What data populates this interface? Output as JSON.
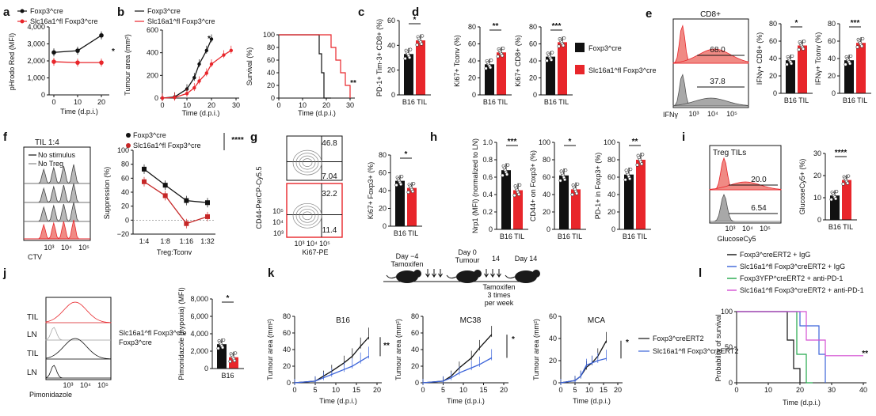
{
  "colors": {
    "ctrl": "#111111",
    "ko": "#e8262b",
    "ko_fill": "#f08a84",
    "blue": "#3b63d9",
    "green": "#22a84a",
    "magenta": "#d44fd2",
    "grey": "#8c8c8c"
  },
  "panel_labels": [
    "a",
    "b",
    "c",
    "d",
    "e",
    "f",
    "g",
    "h",
    "i",
    "j",
    "k",
    "l"
  ],
  "chart_data": [
    {
      "id": "a",
      "type": "line",
      "legend": [
        "Foxp3^cre",
        "Slc16a1^fl Foxp3^cre"
      ],
      "x": [
        0,
        10,
        20
      ],
      "xticks": [
        "0",
        "10",
        "20"
      ],
      "xlabel": "Time (d.p.i.)",
      "ylabel": "pHrodo Red (MFI)",
      "ylim": [
        0,
        4000
      ],
      "yticks": [
        "0",
        "1,000",
        "2,000",
        "3,000",
        "4,000"
      ],
      "series": [
        {
          "name": "Foxp3^cre",
          "values": [
            2500,
            2600,
            3500
          ]
        },
        {
          "name": "Slc16a1^fl Foxp3^cre",
          "values": [
            1950,
            1900,
            1900
          ]
        }
      ],
      "sig": "*"
    },
    {
      "id": "b1",
      "type": "line",
      "legend": [
        "Foxp3^cre",
        "Slc16a1^fl Foxp3^cre"
      ],
      "x": [
        0,
        5,
        10,
        13,
        15,
        18,
        20,
        25,
        28
      ],
      "xticks": [
        "0",
        "10",
        "20",
        "30"
      ],
      "xlabel": "Time (d.p.i.)",
      "ylabel": "Tumour area (mm²)",
      "ylim": [
        0,
        600
      ],
      "yticks": [
        "0",
        "200",
        "400",
        "600"
      ],
      "series": [
        {
          "name": "Foxp3^cre",
          "values": [
            0,
            10,
            80,
            180,
            300,
            420,
            520,
            null,
            null
          ]
        },
        {
          "name": "Slc16a1^fl Foxp3^cre",
          "values": [
            0,
            5,
            40,
            90,
            150,
            220,
            300,
            380,
            420
          ]
        }
      ],
      "sig": "*"
    },
    {
      "id": "b2",
      "type": "line",
      "subtype": "survival",
      "xlabel": "Time (d.p.i.)",
      "ylabel": "Survival (%)",
      "ylim": [
        0,
        100
      ],
      "yticks": [
        "0",
        "20",
        "40",
        "60",
        "80",
        "100"
      ],
      "xticks": [
        "0",
        "10",
        "20",
        "30"
      ],
      "series": [
        {
          "name": "Foxp3^cre",
          "x": [
            0,
            15,
            17,
            18,
            19,
            22
          ],
          "values": [
            100,
            100,
            70,
            40,
            0,
            0
          ]
        },
        {
          "name": "Slc16a1^fl Foxp3^cre",
          "x": [
            0,
            20,
            22,
            24,
            26,
            28,
            30
          ],
          "values": [
            100,
            100,
            80,
            60,
            40,
            20,
            0
          ]
        }
      ],
      "sig": "**"
    },
    {
      "id": "c",
      "type": "bar",
      "categories": [
        "B16 TIL"
      ],
      "ylabel": "PD-1+ Tim-3+ CD8+ (%)",
      "ylim": [
        0,
        60
      ],
      "yticks": [
        "0",
        "20",
        "40",
        "60"
      ],
      "series": [
        {
          "name": "Foxp3^cre",
          "values": [
            33
          ]
        },
        {
          "name": "Slc16a1^fl Foxp3^cre",
          "values": [
            44
          ]
        }
      ],
      "sig": "*"
    },
    {
      "id": "d1",
      "type": "bar",
      "categories": [
        "B16 TIL"
      ],
      "ylabel": "Ki67+ Tconv (%)",
      "ylim": [
        0,
        80
      ],
      "yticks": [
        "0",
        "20",
        "40",
        "60",
        "80"
      ],
      "series": [
        {
          "name": "Foxp3^cre",
          "values": [
            36
          ]
        },
        {
          "name": "Slc16a1^fl Foxp3^cre",
          "values": [
            50
          ]
        }
      ],
      "sig": "**"
    },
    {
      "id": "d2",
      "type": "bar",
      "categories": [
        "B16 TIL"
      ],
      "ylabel": "Ki67+ CD8+ (%)",
      "ylim": [
        0,
        80
      ],
      "yticks": [
        "0",
        "20",
        "40",
        "60",
        "80"
      ],
      "series": [
        {
          "name": "Foxp3^cre",
          "values": [
            45
          ]
        },
        {
          "name": "Slc16a1^fl Foxp3^cre",
          "values": [
            62
          ]
        }
      ],
      "sig": "***",
      "legend": [
        "Foxp3^cre",
        "Slc16a1^fl Foxp3^cre"
      ]
    },
    {
      "id": "e1",
      "type": "area",
      "subtype": "histogram",
      "title": "CD8+",
      "xlabel": "IFNγ",
      "xticks": [
        "10³",
        "10⁴",
        "10⁵"
      ],
      "gates": [
        "68.0",
        "37.8"
      ]
    },
    {
      "id": "e2",
      "type": "bar",
      "categories": [
        "B16 TIL"
      ],
      "ylabel": "IFNγ+ CD8+ (%)",
      "ylim": [
        0,
        80
      ],
      "yticks": [
        "0",
        "20",
        "40",
        "60",
        "80"
      ],
      "series": [
        {
          "name": "Foxp3^cre",
          "values": [
            38
          ]
        },
        {
          "name": "Slc16a1^fl Foxp3^cre",
          "values": [
            55
          ]
        }
      ],
      "sig": "*"
    },
    {
      "id": "e3",
      "type": "bar",
      "categories": [
        "B16 TIL"
      ],
      "ylabel": "IFNγ+ Tconv (%)",
      "ylim": [
        0,
        80
      ],
      "yticks": [
        "0",
        "20",
        "40",
        "60",
        "80"
      ],
      "series": [
        {
          "name": "Foxp3^cre",
          "values": [
            38
          ]
        },
        {
          "name": "Slc16a1^fl Foxp3^cre",
          "values": [
            58
          ]
        }
      ],
      "sig": "***"
    },
    {
      "id": "f1",
      "type": "area",
      "subtype": "histogram",
      "title": "TIL 1:4",
      "legend": [
        "No stimulus",
        "No Treg"
      ],
      "xlabel": "CTV",
      "xticks": [
        "10³",
        "10⁴",
        "10⁵"
      ]
    },
    {
      "id": "f2",
      "type": "line",
      "legend": [
        "Foxp3^cre",
        "Slc16a1^fl Foxp3^cre"
      ],
      "categories": [
        "1:4",
        "1:8",
        "1:16",
        "1:32"
      ],
      "xlabel": "Treg:Tconv",
      "ylabel": "Suppression (%)",
      "ylim": [
        -20,
        100
      ],
      "yticks": [
        "−20",
        "0",
        "20",
        "40",
        "60",
        "80",
        "100"
      ],
      "series": [
        {
          "name": "Foxp3^cre",
          "values": [
            73,
            50,
            28,
            25
          ]
        },
        {
          "name": "Slc16a1^fl Foxp3^cre",
          "values": [
            55,
            35,
            -5,
            5
          ]
        }
      ],
      "sig": "****"
    },
    {
      "id": "g1",
      "type": "scatter",
      "subtype": "flow-contour",
      "xlabel": "Ki67-PE",
      "ylabel": "CD44-PerCP-Cy5.5",
      "xticks": [
        "10³",
        "10⁴",
        "10⁵"
      ],
      "yticks": [
        "10³",
        "10⁴",
        "10⁵"
      ],
      "gates": [
        "46.8",
        "7.04",
        "32.2",
        "11.4"
      ]
    },
    {
      "id": "g2",
      "type": "bar",
      "categories": [
        "B16 TIL"
      ],
      "ylabel": "Ki67+ Foxp3+ (%)",
      "ylim": [
        0,
        80
      ],
      "yticks": [
        "0",
        "20",
        "40",
        "60",
        "80"
      ],
      "series": [
        {
          "name": "Foxp3^cre",
          "values": [
            51
          ]
        },
        {
          "name": "Slc16a1^fl Foxp3^cre",
          "values": [
            43
          ]
        }
      ],
      "sig": "*"
    },
    {
      "id": "h1",
      "type": "bar",
      "categories": [
        "B16 TIL"
      ],
      "ylabel": "Nrp1 (MFI) (normalized to LN)",
      "ylim": [
        0,
        1.0
      ],
      "yticks": [
        "0",
        "0.2",
        "0.4",
        "0.6",
        "0.8",
        "1.0"
      ],
      "series": [
        {
          "name": "Foxp3^cre",
          "values": [
            0.68
          ]
        },
        {
          "name": "Slc16a1^fl Foxp3^cre",
          "values": [
            0.45
          ]
        }
      ],
      "sig": "***"
    },
    {
      "id": "h2",
      "type": "bar",
      "categories": [
        "B16 TIL"
      ],
      "ylabel": "CD44+ on Foxp3+ (%)",
      "ylim": [
        0,
        100
      ],
      "yticks": [
        "0",
        "20",
        "40",
        "60",
        "80",
        "100"
      ],
      "series": [
        {
          "name": "Foxp3^cre",
          "values": [
            62
          ]
        },
        {
          "name": "Slc16a1^fl Foxp3^cre",
          "values": [
            46
          ]
        }
      ],
      "sig": "*"
    },
    {
      "id": "h3",
      "type": "bar",
      "categories": [
        "B16 TIL"
      ],
      "ylabel": "PD-1+ in Foxp3+ (%)",
      "ylim": [
        0,
        100
      ],
      "yticks": [
        "0",
        "20",
        "40",
        "60",
        "80",
        "100"
      ],
      "series": [
        {
          "name": "Foxp3^cre",
          "values": [
            63
          ]
        },
        {
          "name": "Slc16a1^fl Foxp3^cre",
          "values": [
            80
          ]
        }
      ],
      "sig": "**"
    },
    {
      "id": "i1",
      "type": "area",
      "subtype": "histogram",
      "title": "Treg TILs",
      "xlabel": "GlucoseCy5",
      "xticks": [
        "10³",
        "10⁴",
        "10⁵"
      ],
      "gates": [
        "20.0",
        "6.54"
      ]
    },
    {
      "id": "i2",
      "type": "bar",
      "categories": [
        "B16 TIL"
      ],
      "ylabel": "GlucoseCy5+ (%)",
      "ylim": [
        0,
        30
      ],
      "yticks": [
        "0",
        "10",
        "20",
        "30"
      ],
      "series": [
        {
          "name": "Foxp3^cre",
          "values": [
            11
          ]
        },
        {
          "name": "Slc16a1^fl Foxp3^cre",
          "values": [
            18
          ]
        }
      ],
      "sig": "****"
    },
    {
      "id": "j1",
      "type": "area",
      "subtype": "histogram",
      "rows": [
        "TIL",
        "LN",
        "TIL",
        "LN"
      ],
      "legend": [
        "Slc16a1^fl Foxp3^cre",
        "Foxp3^cre"
      ],
      "xlabel": "Pimonidazole",
      "xticks": [
        "10³",
        "10⁴",
        "10⁵"
      ]
    },
    {
      "id": "j2",
      "type": "bar",
      "categories": [
        "B16"
      ],
      "ylabel": "Pimonidazole (hypoxia) (MFI)",
      "ylim": [
        0,
        8000
      ],
      "yticks": [
        "0",
        "2,000",
        "4,000",
        "6,000",
        "8,000"
      ],
      "series": [
        {
          "name": "Foxp3^cre",
          "values": [
            2800
          ]
        },
        {
          "name": "Slc16a1^fl Foxp3^cre",
          "values": [
            1300
          ]
        }
      ],
      "sig": "*"
    },
    {
      "id": "k0",
      "type": "diagram",
      "steps": [
        "Day −4",
        "Tamoxifen",
        "Day 0",
        "Tumour",
        "14",
        "Day 14",
        "Tamoxifen",
        "3 times",
        "per week"
      ]
    },
    {
      "id": "k1",
      "type": "line",
      "title": "B16",
      "xlabel": "Time (d.p.i.)",
      "ylabel": "Tumour area (mm²)",
      "x": [
        0,
        5,
        7,
        9,
        12,
        14,
        16,
        18
      ],
      "xticks": [
        "0",
        "5",
        "10",
        "15",
        "20"
      ],
      "ylim": [
        0,
        80
      ],
      "yticks": [
        "0",
        "20",
        "40",
        "60",
        "80"
      ],
      "series": [
        {
          "name": "Foxp3^creERT2",
          "values": [
            0,
            2,
            8,
            14,
            24,
            32,
            44,
            55
          ]
        },
        {
          "name": "Slc16a1^fl Foxp3^creERT2",
          "values": [
            0,
            2,
            6,
            10,
            16,
            20,
            26,
            32
          ]
        }
      ],
      "sig": "**"
    },
    {
      "id": "k2",
      "type": "line",
      "title": "MC38",
      "xlabel": "Time (d.p.i.)",
      "ylabel": "Tumour area (mm²)",
      "x": [
        0,
        5,
        7,
        9,
        12,
        14,
        17
      ],
      "xticks": [
        "0",
        "5",
        "10",
        "15",
        "20"
      ],
      "ylim": [
        0,
        80
      ],
      "yticks": [
        "0",
        "20",
        "40",
        "60",
        "80"
      ],
      "series": [
        {
          "name": "Foxp3^creERT2",
          "values": [
            0,
            2,
            8,
            18,
            30,
            42,
            58
          ]
        },
        {
          "name": "Slc16a1^fl Foxp3^creERT2",
          "values": [
            0,
            2,
            6,
            12,
            18,
            22,
            30
          ]
        }
      ],
      "sig": "*"
    },
    {
      "id": "k3",
      "type": "line",
      "title": "MCA",
      "xlabel": "Time (d.p.i.)",
      "ylabel": "Tumour area (mm²)",
      "x": [
        0,
        5,
        7,
        9,
        11,
        13,
        16
      ],
      "xticks": [
        "0",
        "5",
        "10",
        "15",
        "20"
      ],
      "ylim": [
        0,
        60
      ],
      "yticks": [
        "0",
        "20",
        "40",
        "60"
      ],
      "series": [
        {
          "name": "Foxp3^creERT2",
          "values": [
            0,
            2,
            6,
            14,
            18,
            24,
            38
          ]
        },
        {
          "name": "Slc16a1^fl Foxp3^creERT2",
          "values": [
            0,
            2,
            6,
            16,
            18,
            20,
            22
          ]
        }
      ],
      "legend": [
        "Foxp3^creERT2",
        "Slc16a1^fl Foxp3^creERT2"
      ],
      "sig": "*"
    },
    {
      "id": "l",
      "type": "line",
      "subtype": "survival",
      "legend": [
        "Foxp3^creERT2 + IgG",
        "Slc16a1^fl Foxp3^creERT2 + IgG",
        "Foxp3YFP^creERT2 + anti-PD-1",
        "Slc16a1^fl Foxp3^creERT2 + anti-PD-1"
      ],
      "xlabel": "Time (d.p.i.)",
      "ylabel": "Probability of survival",
      "ylim": [
        0,
        100
      ],
      "yticks": [
        "0",
        "50",
        "100"
      ],
      "xticks": [
        "0",
        "10",
        "20",
        "30",
        "40"
      ],
      "series": [
        {
          "name": "Foxp3^creERT2 + IgG",
          "x": [
            0,
            15,
            16,
            18,
            20
          ],
          "values": [
            100,
            100,
            60,
            20,
            0
          ]
        },
        {
          "name": "Slc16a1^fl Foxp3^creERT2 + IgG",
          "x": [
            0,
            18,
            20,
            26,
            28
          ],
          "values": [
            100,
            100,
            80,
            40,
            0
          ]
        },
        {
          "name": "Foxp3YFP^creERT2 + anti-PD-1",
          "x": [
            0,
            17,
            19,
            22,
            24
          ],
          "values": [
            100,
            100,
            40,
            0,
            0
          ]
        },
        {
          "name": "Slc16a1^fl Foxp3^creERT2 + anti-PD-1",
          "x": [
            0,
            20,
            22,
            28,
            40
          ],
          "values": [
            100,
            100,
            60,
            38,
            38
          ]
        }
      ],
      "sig": "**"
    }
  ]
}
